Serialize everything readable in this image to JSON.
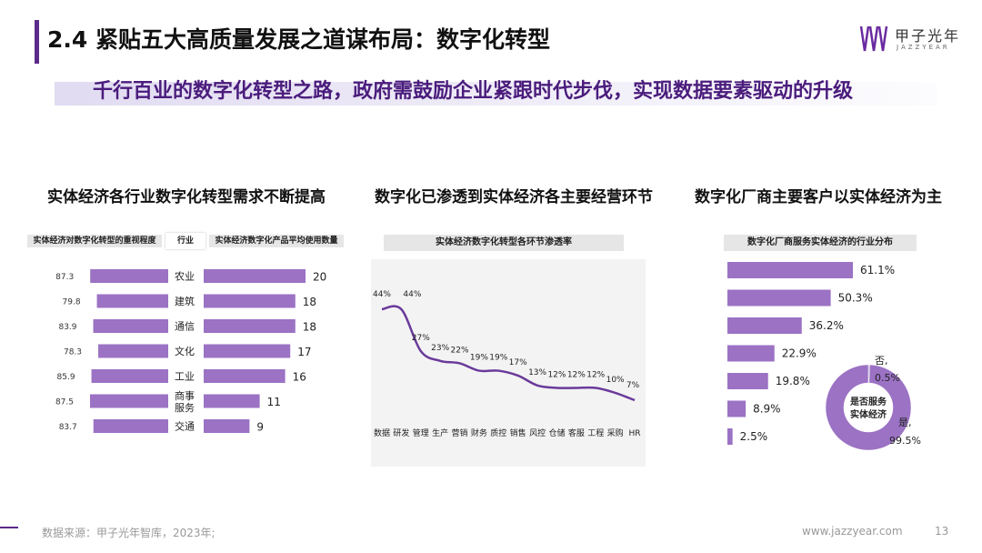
{
  "header": {
    "title": "2.4 紧贴五大高质量发展之道谋布局：数字化转型",
    "subtitle": "千行百业的数字化转型之路，政府需鼓励企业紧跟时代步伐，实现数据要素驱动的升级",
    "logo_text": "甲子光年",
    "logo_sub": "JAZZYEAR"
  },
  "sections": {
    "left_title": "实体经济各行业数字化转型需求不断提高",
    "mid_title": "数字化已渗透到实体经济各主要经营环节",
    "right_title": "数字化厂商主要客户以实体经济为主"
  },
  "colors": {
    "accent": "#9b72c4",
    "line": "#6a3a9a",
    "brand": "#5b2a8a"
  },
  "footer": {
    "source": "数据来源：甲子光年智库，2023年;",
    "url": "www.jazzyear.com",
    "page": "13"
  },
  "chart_data": [
    {
      "type": "bar",
      "title": "",
      "header_left": "实体经济对数字化转型的重视程度",
      "header_mid": "行业",
      "header_right": "实体经济数字化产品平均使用数量",
      "categories": [
        "农业",
        "建筑",
        "通信",
        "文化",
        "工业",
        "商事服务",
        "交通"
      ],
      "series": [
        {
          "name": "实体经济对数字化转型的重视程度",
          "values": [
            87.3,
            79.8,
            83.9,
            78.3,
            85.9,
            87.5,
            83.7
          ]
        },
        {
          "name": "实体经济数字化产品平均使用数量",
          "values": [
            20,
            18,
            18,
            17,
            16,
            11,
            9
          ]
        }
      ]
    },
    {
      "type": "line",
      "title": "实体经济数字化转型各环节渗透率",
      "categories": [
        "数据",
        "研发",
        "管理",
        "生产",
        "营销",
        "财务",
        "质控",
        "销售",
        "风控",
        "仓储",
        "客服",
        "工程",
        "采购",
        "HR"
      ],
      "values": [
        44,
        44,
        27,
        23,
        22,
        19,
        19,
        17,
        13,
        12,
        12,
        12,
        10,
        7
      ],
      "value_labels": [
        "44%",
        "44%",
        "27%",
        "23%",
        "22%",
        "19%",
        "19%",
        "17%",
        "13%",
        "12%",
        "12%",
        "12%",
        "10%",
        "7%"
      ],
      "ylim": [
        0,
        50
      ]
    },
    {
      "type": "bar",
      "title": "数字化厂商服务实体经济的行业分布",
      "values": [
        61.1,
        50.3,
        36.2,
        22.9,
        19.8,
        8.9,
        2.5
      ],
      "value_labels": [
        "61.1%",
        "50.3%",
        "36.2%",
        "22.9%",
        "19.8%",
        "8.9%",
        "2.5%"
      ],
      "xlim": [
        0,
        100
      ]
    },
    {
      "type": "pie",
      "title": "是否服务实体经济",
      "categories": [
        "否",
        "是"
      ],
      "values": [
        0.5,
        99.5
      ],
      "labels": [
        "否,",
        "是,"
      ],
      "value_labels": [
        "0.5%",
        "99.5%"
      ]
    }
  ]
}
